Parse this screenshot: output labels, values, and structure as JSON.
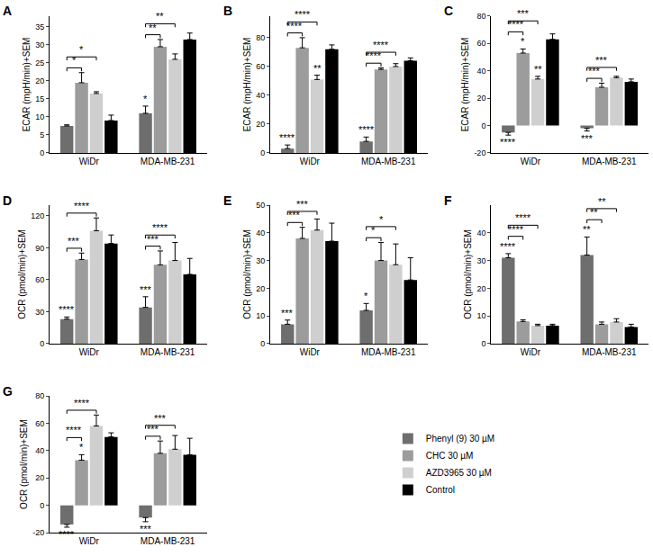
{
  "chart_data": [
    {
      "type": "bar",
      "title": "A",
      "y_label": "ECAR (mpH/min)+SEM",
      "categories": [
        "WiDr",
        "MDA-MB-231"
      ],
      "ylim": [
        0,
        38
      ],
      "yticks": [
        0,
        5,
        10,
        15,
        20,
        25,
        30,
        35
      ],
      "grid": false,
      "series": [
        {
          "name": "Phenyl (9) 30 µM",
          "color": "#6e6e6e",
          "values": [
            7.5,
            11
          ],
          "errors": [
            0.3,
            2
          ],
          "significance": [
            null,
            "*"
          ]
        },
        {
          "name": "CHC 30 µM",
          "color": "#9c9c9c",
          "values": [
            19.5,
            29.5
          ],
          "errors": [
            2.8,
            2
          ]
        },
        {
          "name": "AZD3965 30 µM",
          "color": "#cfcfcf",
          "values": [
            16.5,
            26
          ],
          "errors": [
            0.5,
            1.5
          ]
        },
        {
          "name": "Control",
          "color": "#000000",
          "values": [
            9,
            31.5
          ],
          "errors": [
            1.5,
            1.8
          ]
        }
      ],
      "comparisons": [
        {
          "category": 0,
          "from": 0,
          "to": 1,
          "label": "*"
        },
        {
          "category": 0,
          "from": 0,
          "to": 2,
          "label": "*"
        },
        {
          "category": 1,
          "from": 0,
          "to": 1,
          "label": "**"
        },
        {
          "category": 1,
          "from": 0,
          "to": 2,
          "label": "**"
        }
      ]
    },
    {
      "type": "bar",
      "title": "B",
      "y_label": "ECAR (mpH/min)+SEM",
      "categories": [
        "WiDr",
        "MDA-MB-231"
      ],
      "ylim": [
        0,
        95
      ],
      "yticks": [
        0,
        20,
        40,
        60,
        80
      ],
      "grid": false,
      "series": [
        {
          "name": "Phenyl (9) 30 µM",
          "color": "#6e6e6e",
          "values": [
            3,
            8
          ],
          "errors": [
            2.5,
            3
          ],
          "significance": [
            "****",
            "****"
          ]
        },
        {
          "name": "CHC 30 µM",
          "color": "#9c9c9c",
          "values": [
            73,
            58
          ],
          "errors": [
            7,
            1
          ]
        },
        {
          "name": "AZD3965 30 µM",
          "color": "#cfcfcf",
          "values": [
            51,
            60
          ],
          "errors": [
            3,
            2
          ],
          "significance": [
            "**",
            null
          ]
        },
        {
          "name": "Control",
          "color": "#000000",
          "values": [
            72,
            64
          ],
          "errors": [
            3,
            2
          ]
        }
      ],
      "comparisons": [
        {
          "category": 0,
          "from": 0,
          "to": 1,
          "label": "****"
        },
        {
          "category": 0,
          "from": 0,
          "to": 2,
          "label": "****"
        },
        {
          "category": 1,
          "from": 0,
          "to": 1,
          "label": "****"
        },
        {
          "category": 1,
          "from": 0,
          "to": 2,
          "label": "****"
        }
      ]
    },
    {
      "type": "bar",
      "title": "C",
      "y_label": "ECAR (mpH/min)+SEM",
      "categories": [
        "WiDr",
        "MDA-MB-231"
      ],
      "ylim": [
        -20,
        80
      ],
      "yticks": [
        -20,
        0,
        20,
        40,
        60,
        80
      ],
      "grid": false,
      "series": [
        {
          "name": "Phenyl (9) 30 µM",
          "color": "#6e6e6e",
          "values": [
            -5,
            -2
          ],
          "errors": [
            2,
            2
          ],
          "significance": [
            "****",
            "***"
          ]
        },
        {
          "name": "CHC 30 µM",
          "color": "#9c9c9c",
          "values": [
            53,
            28
          ],
          "errors": [
            3,
            3
          ],
          "significance": [
            "*",
            null
          ]
        },
        {
          "name": "AZD3965 30 µM",
          "color": "#cfcfcf",
          "values": [
            34,
            35
          ],
          "errors": [
            2,
            1
          ],
          "significance": [
            "**",
            null
          ]
        },
        {
          "name": "Control",
          "color": "#000000",
          "values": [
            63,
            32
          ],
          "errors": [
            4,
            2
          ]
        }
      ],
      "comparisons": [
        {
          "category": 0,
          "from": 0,
          "to": 1,
          "label": "****"
        },
        {
          "category": 0,
          "from": 0,
          "to": 2,
          "label": "***"
        },
        {
          "category": 1,
          "from": 0,
          "to": 1,
          "label": "***"
        },
        {
          "category": 1,
          "from": 0,
          "to": 2,
          "label": "***"
        }
      ]
    },
    {
      "type": "bar",
      "title": "D",
      "y_label": "OCR (pmol/min)+SEM",
      "categories": [
        "WiDr",
        "MDA-MB-231"
      ],
      "ylim": [
        0,
        130
      ],
      "yticks": [
        0,
        30,
        60,
        90,
        120
      ],
      "grid": false,
      "series": [
        {
          "name": "Phenyl (9) 30 µM",
          "color": "#6e6e6e",
          "values": [
            23,
            34
          ],
          "errors": [
            2,
            10
          ],
          "significance": [
            "****",
            "***"
          ]
        },
        {
          "name": "CHC 30 µM",
          "color": "#9c9c9c",
          "values": [
            79,
            74
          ],
          "errors": [
            6,
            13
          ]
        },
        {
          "name": "AZD3965 30 µM",
          "color": "#cfcfcf",
          "values": [
            106,
            78
          ],
          "errors": [
            12,
            17
          ]
        },
        {
          "name": "Control",
          "color": "#000000",
          "values": [
            94,
            65
          ],
          "errors": [
            8,
            15
          ]
        }
      ],
      "comparisons": [
        {
          "category": 0,
          "from": 0,
          "to": 1,
          "label": "***"
        },
        {
          "category": 0,
          "from": 0,
          "to": 2,
          "label": "****"
        },
        {
          "category": 1,
          "from": 0,
          "to": 1,
          "label": "***"
        },
        {
          "category": 1,
          "from": 0,
          "to": 2,
          "label": "****"
        }
      ]
    },
    {
      "type": "bar",
      "title": "E",
      "y_label": "OCR (pmol/min)+SEM",
      "categories": [
        "WiDr",
        "MDA-MB-231"
      ],
      "ylim": [
        0,
        50
      ],
      "yticks": [
        0,
        10,
        20,
        30,
        40,
        50
      ],
      "grid": false,
      "series": [
        {
          "name": "Phenyl (9) 30 µM",
          "color": "#6e6e6e",
          "values": [
            7,
            12
          ],
          "errors": [
            1.5,
            2.5
          ],
          "significance": [
            "***",
            "*"
          ]
        },
        {
          "name": "CHC 30 µM",
          "color": "#9c9c9c",
          "values": [
            38,
            30
          ],
          "errors": [
            4,
            6.5
          ]
        },
        {
          "name": "AZD3965 30 µM",
          "color": "#cfcfcf",
          "values": [
            41,
            28.5
          ],
          "errors": [
            4,
            7.5
          ]
        },
        {
          "name": "Control",
          "color": "#000000",
          "values": [
            37,
            23
          ],
          "errors": [
            6.5,
            8
          ]
        }
      ],
      "comparisons": [
        {
          "category": 0,
          "from": 0,
          "to": 1,
          "label": "***"
        },
        {
          "category": 0,
          "from": 0,
          "to": 2,
          "label": "***"
        },
        {
          "category": 1,
          "from": 0,
          "to": 1,
          "label": "*"
        },
        {
          "category": 1,
          "from": 0,
          "to": 2,
          "label": "*"
        }
      ]
    },
    {
      "type": "bar",
      "title": "F",
      "y_label": "OCR (pmol/min)+SEM",
      "categories": [
        "WiDr",
        "MDA-MB-231"
      ],
      "ylim": [
        0,
        50
      ],
      "yticks": [
        0,
        10,
        20,
        30,
        40
      ],
      "grid": false,
      "series": [
        {
          "name": "Phenyl (9) 30 µM",
          "color": "#6e6e6e",
          "values": [
            31,
            32
          ],
          "errors": [
            1.5,
            6.5
          ],
          "significance": [
            "****",
            "**"
          ]
        },
        {
          "name": "CHC 30 µM",
          "color": "#9c9c9c",
          "values": [
            8,
            7
          ],
          "errors": [
            0.6,
            0.8
          ]
        },
        {
          "name": "AZD3965 30 µM",
          "color": "#cfcfcf",
          "values": [
            6.5,
            7.8
          ],
          "errors": [
            0.5,
            1.2
          ]
        },
        {
          "name": "Control",
          "color": "#000000",
          "values": [
            6.5,
            6
          ],
          "errors": [
            0.5,
            1
          ]
        }
      ],
      "comparisons": [
        {
          "category": 0,
          "from": 0,
          "to": 1,
          "label": "****"
        },
        {
          "category": 0,
          "from": 0,
          "to": 2,
          "label": "****"
        },
        {
          "category": 1,
          "from": 0,
          "to": 1,
          "label": "**"
        },
        {
          "category": 1,
          "from": 0,
          "to": 2,
          "label": "**"
        }
      ]
    },
    {
      "type": "bar",
      "title": "G",
      "y_label": "OCR (pmol/min)+SEM",
      "categories": [
        "WiDr",
        "MDA-MB-231"
      ],
      "ylim": [
        -20,
        80
      ],
      "yticks": [
        -20,
        0,
        20,
        40,
        60,
        80
      ],
      "grid": false,
      "legend": "right",
      "series": [
        {
          "name": "Phenyl (9) 30 µM",
          "color": "#6e6e6e",
          "values": [
            -14,
            -9
          ],
          "errors": [
            2,
            3
          ],
          "significance": [
            "****",
            "***"
          ]
        },
        {
          "name": "CHC 30 µM",
          "color": "#9c9c9c",
          "values": [
            33,
            38
          ],
          "errors": [
            4,
            9
          ],
          "significance": [
            "*",
            null
          ]
        },
        {
          "name": "AZD3965 30 µM",
          "color": "#cfcfcf",
          "values": [
            58,
            41
          ],
          "errors": [
            8,
            10
          ]
        },
        {
          "name": "Control",
          "color": "#000000",
          "values": [
            50,
            37
          ],
          "errors": [
            3,
            12
          ]
        }
      ],
      "comparisons": [
        {
          "category": 0,
          "from": 0,
          "to": 1,
          "label": "****"
        },
        {
          "category": 0,
          "from": 0,
          "to": 2,
          "label": "****"
        },
        {
          "category": 1,
          "from": 0,
          "to": 1,
          "label": "***"
        },
        {
          "category": 1,
          "from": 0,
          "to": 2,
          "label": "***"
        }
      ]
    }
  ]
}
